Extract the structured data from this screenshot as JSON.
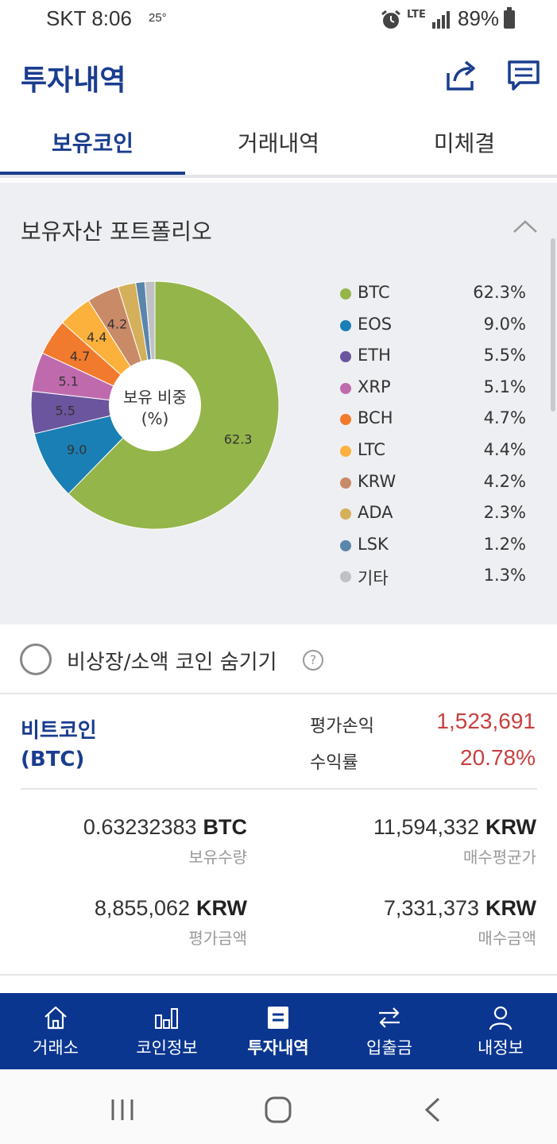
{
  "status": {
    "carrier_time": "SKT 8:06",
    "temp": "25°",
    "network": "LTE",
    "battery": "89%"
  },
  "header": {
    "title": "투자내역"
  },
  "tabs": [
    {
      "label": "보유코인",
      "active": true
    },
    {
      "label": "거래내역",
      "active": false
    },
    {
      "label": "미체결",
      "active": false
    }
  ],
  "portfolio": {
    "title": "보유자산 포트폴리오",
    "center_label_1": "보유 비중",
    "center_label_2": "(%)"
  },
  "chart_data": {
    "type": "pie",
    "categories": [
      "BTC",
      "EOS",
      "ETH",
      "XRP",
      "BCH",
      "LTC",
      "KRW",
      "ADA",
      "LSK",
      "기타"
    ],
    "values": [
      62.3,
      9.0,
      5.5,
      5.1,
      4.7,
      4.4,
      4.2,
      2.3,
      1.2,
      1.3
    ],
    "slice_labels": [
      "62.3",
      "9.0",
      "5.5",
      "5.1",
      "4.7",
      "4.4",
      "4.2",
      "",
      "",
      ""
    ],
    "legend_values": [
      "62.3%",
      "9.0%",
      "5.5%",
      "5.1%",
      "4.7%",
      "4.4%",
      "4.2%",
      "2.3%",
      "1.2%",
      "1.3%"
    ],
    "colors": [
      "#94b54a",
      "#1a7fb4",
      "#6b559e",
      "#c06aae",
      "#f27a2c",
      "#fbb13c",
      "#c98a68",
      "#d4b05a",
      "#5b86ab",
      "#c0c1c5"
    ],
    "legend_placement": "right"
  },
  "hide_row": {
    "label": "비상장/소액 코인 숨기기",
    "help": "?"
  },
  "coin": {
    "name_1": "비트코인",
    "name_2": "(BTC)",
    "pl_label": "평가손익",
    "pl_value": "1,523,691",
    "rate_label": "수익률",
    "rate_value": "20.78%"
  },
  "holdings": {
    "qty": {
      "num": "0.63232383",
      "unit": "BTC",
      "label": "보유수량"
    },
    "avg_price": {
      "num": "11,594,332",
      "unit": "KRW",
      "label": "매수평균가"
    },
    "eval_amount": {
      "num": "8,855,062",
      "unit": "KRW",
      "label": "평가금액"
    },
    "buy_amount": {
      "num": "7,331,373",
      "unit": "KRW",
      "label": "매수금액"
    }
  },
  "bottom_nav": [
    {
      "label": "거래소",
      "icon": "home-icon"
    },
    {
      "label": "코인정보",
      "icon": "bar-chart-icon"
    },
    {
      "label": "투자내역",
      "icon": "list-icon",
      "active": true
    },
    {
      "label": "입출금",
      "icon": "transfer-icon"
    },
    {
      "label": "내정보",
      "icon": "user-icon"
    }
  ]
}
